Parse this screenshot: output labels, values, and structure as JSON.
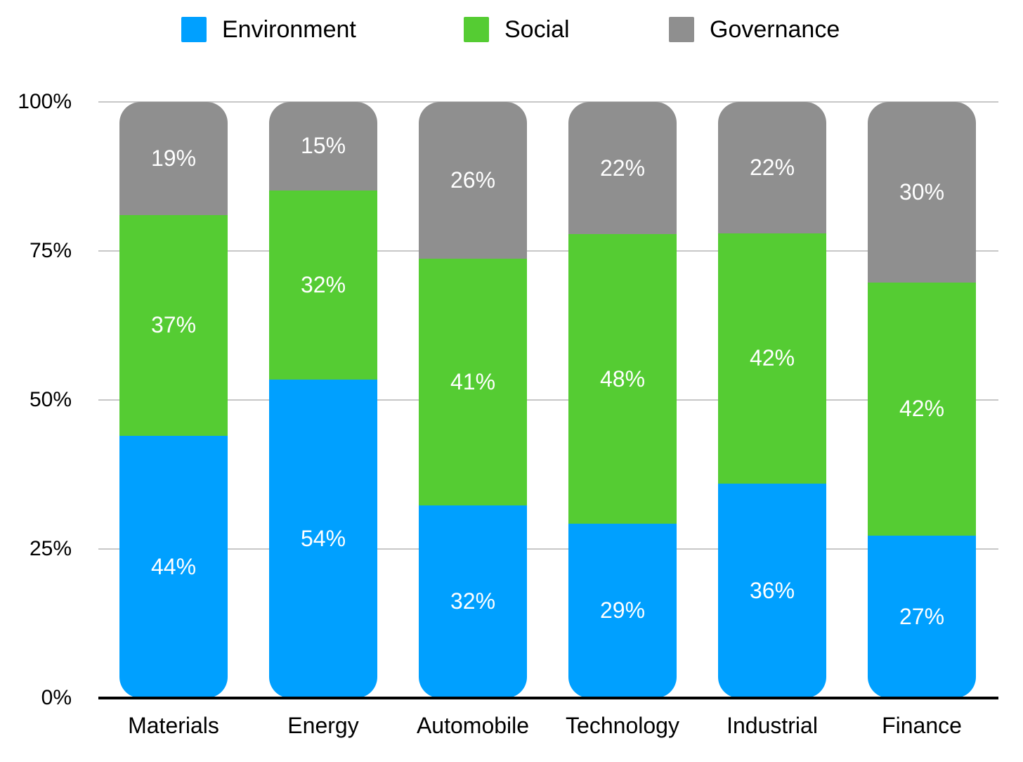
{
  "chart_data": {
    "type": "bar",
    "subtype": "stacked-100-percent",
    "categories": [
      "Materials",
      "Energy",
      "Automobile",
      "Technology",
      "Industrial",
      "Finance"
    ],
    "series": [
      {
        "name": "Environment",
        "color": "#00A0FF",
        "values": [
          44,
          54,
          32,
          29,
          36,
          27
        ],
        "labels": [
          "44%",
          "54%",
          "32%",
          "29%",
          "36%",
          "27%"
        ]
      },
      {
        "name": "Social",
        "color": "#55CC33",
        "values": [
          37,
          32,
          41,
          48,
          42,
          42
        ],
        "labels": [
          "37%",
          "32%",
          "41%",
          "48%",
          "42%",
          "42%"
        ]
      },
      {
        "name": "Governance",
        "color": "#8F8F8F",
        "values": [
          19,
          15,
          26,
          22,
          22,
          30
        ],
        "labels": [
          "19%",
          "15%",
          "26%",
          "22%",
          "22%",
          "30%"
        ]
      }
    ],
    "y_ticks": [
      {
        "label": "0%",
        "value": 0
      },
      {
        "label": "25%",
        "value": 25
      },
      {
        "label": "50%",
        "value": 50
      },
      {
        "label": "75%",
        "value": 75
      },
      {
        "label": "100%",
        "value": 100
      }
    ],
    "ylim": [
      0,
      100
    ],
    "grid": true,
    "legend_position": "top",
    "value_format": "percent",
    "label_text_color": "#FFFFFF",
    "axis_color": "#000000",
    "gridline_color": "#C7C7C7"
  }
}
